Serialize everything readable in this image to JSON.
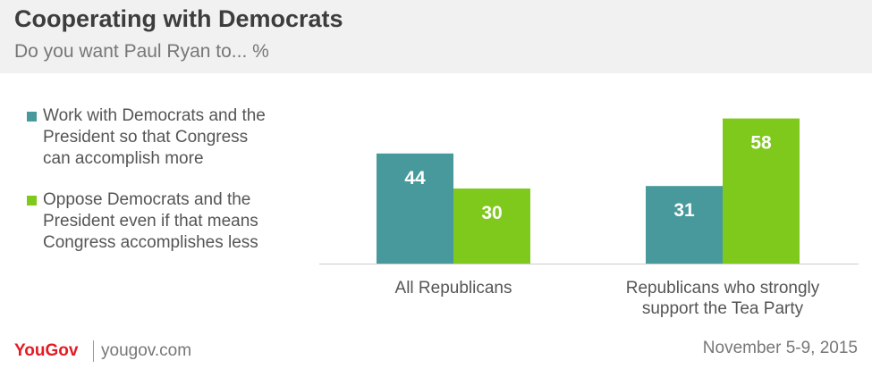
{
  "header": {
    "title": "Cooperating with Democrats",
    "subtitle": "Do you want Paul Ryan to... %"
  },
  "colors": {
    "work": "#47999b",
    "oppose": "#7fc91d",
    "axis": "#cccccc",
    "category_text": "#555555",
    "bar_label": "#ffffff"
  },
  "chart_data": {
    "type": "bar",
    "title": "Cooperating with Democrats",
    "subtitle": "Do you want Paul Ryan to... %",
    "categories": [
      "All Republicans",
      "Republicans who strongly\nsupport the Tea Party"
    ],
    "series": [
      {
        "name": "Work with Democrats and the\nPresident so that Congress\ncan accomplish more",
        "color": "#47999b",
        "values": [
          44,
          31
        ]
      },
      {
        "name": "Oppose Democrats and the\nPresident even if that means\nCongress accomplishes less",
        "color": "#7fc91d",
        "values": [
          30,
          58
        ]
      }
    ],
    "ylim": [
      0,
      60
    ],
    "grid": false,
    "legend_position": "left",
    "data_labels": true
  },
  "footer": {
    "logo": "YouGov",
    "url": "yougov.com",
    "date": "November 5-9, 2015"
  }
}
